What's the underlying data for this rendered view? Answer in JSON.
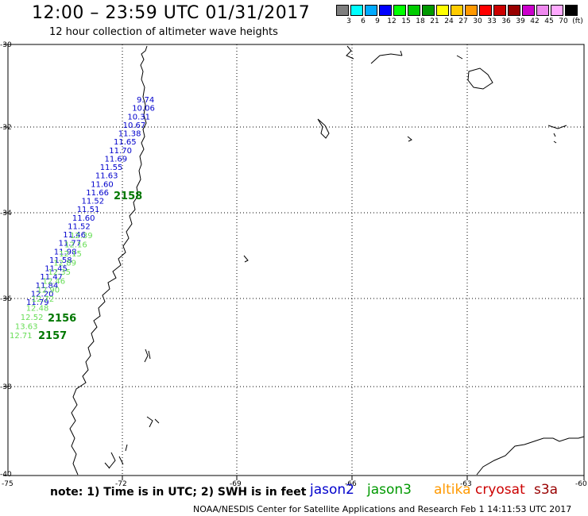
{
  "header": {
    "title": "12:00 – 23:59 UTC 01/31/2017",
    "subtitle": "12 hour collection of altimeter wave heights"
  },
  "colorbar": {
    "colors": [
      "#7f7f7f",
      "#00ffff",
      "#00aaff",
      "#0000ff",
      "#00ff00",
      "#00cc00",
      "#009900",
      "#ffff00",
      "#ffcc00",
      "#ff9900",
      "#ff0000",
      "#cc0000",
      "#990000",
      "#cc00cc",
      "#ee88ee",
      "#ffaaff",
      "#000000"
    ],
    "labels": [
      "3",
      "6",
      "9",
      "12",
      "15",
      "18",
      "21",
      "24",
      "27",
      "30",
      "33",
      "36",
      "39",
      "42",
      "45",
      "70",
      "(ft)"
    ]
  },
  "map": {
    "lat_labels": [
      "-30",
      "-32",
      "-34",
      "-36",
      "-38",
      "-40"
    ],
    "lon_labels": [
      "-75",
      "-72",
      "-69",
      "-66",
      "-63",
      "-60"
    ],
    "jason2_values": [
      "9.74",
      "10.06",
      "10.31",
      "10.67",
      "11.38",
      "11.65",
      "11.70",
      "11.69",
      "11.55",
      "11.63",
      "11.60",
      "11.66",
      "11.52",
      "11.51",
      "11.60",
      "11.52",
      "11.46",
      "11.77",
      "11.98",
      "11.58",
      "11.45",
      "11.47",
      "11.84",
      "12.20",
      "11.79"
    ],
    "jason3_values": [
      "12.39",
      "12.16",
      "12.15",
      "12.89",
      "12.35",
      "12.46",
      "12.90",
      "12.72",
      "12.48",
      "12.52",
      "13.63",
      "12.71"
    ],
    "time_labels": [
      "2158",
      "2156",
      "2157"
    ]
  },
  "footer": {
    "note": "note: 1) Time is in UTC; 2) SWH is in feet",
    "legend": [
      {
        "name": "jason2",
        "color": "#0000cc"
      },
      {
        "name": "jason3",
        "color": "#009900"
      },
      {
        "name": "altika",
        "color": "#ff9900"
      },
      {
        "name": "cryosat",
        "color": "#cc0000"
      },
      {
        "name": "s3a",
        "color": "#990000"
      }
    ],
    "credit": "NOAA/NESDIS Center for Satellite Applications and Research    Feb  1 14:11:53 UTC 2017"
  }
}
